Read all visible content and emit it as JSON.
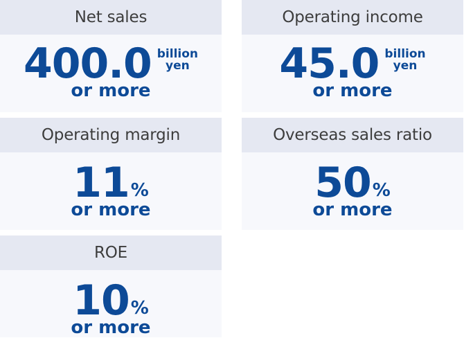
{
  "cards": [
    {
      "title": "Net sales",
      "value": "400.0",
      "unit_line1": "billion",
      "unit_line2": "yen",
      "qualifier": "or more"
    },
    {
      "title": "Operating income",
      "value": "45.0",
      "unit_line1": "billion",
      "unit_line2": "yen",
      "qualifier": "or more"
    },
    {
      "title": "Operating margin",
      "value": "11",
      "unit": "%",
      "qualifier": "or more"
    },
    {
      "title": "Overseas sales ratio",
      "value": "50",
      "unit": "%",
      "qualifier": "or more"
    },
    {
      "title": "ROE",
      "value": "10",
      "unit": "%",
      "qualifier": "or more"
    }
  ],
  "colors": {
    "header_bg": "#e5e8f2",
    "card_bg": "#f7f8fc",
    "value_color": "#0d4a97",
    "title_color": "#3d3d3d"
  }
}
